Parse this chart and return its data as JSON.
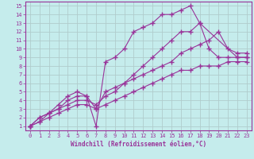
{
  "xlabel": "Windchill (Refroidissement éolien,°C)",
  "xlim": [
    -0.5,
    23.5
  ],
  "ylim": [
    0.5,
    15.5
  ],
  "xticks": [
    0,
    1,
    2,
    3,
    4,
    5,
    6,
    7,
    8,
    9,
    10,
    11,
    12,
    13,
    14,
    15,
    16,
    17,
    18,
    19,
    20,
    21,
    22,
    23
  ],
  "yticks": [
    1,
    2,
    3,
    4,
    5,
    6,
    7,
    8,
    9,
    10,
    11,
    12,
    13,
    14,
    15
  ],
  "bg_color": "#c5ecec",
  "line_color": "#993399",
  "grid_color": "#b0cccc",
  "lines": [
    {
      "x": [
        0,
        1,
        2,
        3,
        4,
        5,
        6,
        7,
        8,
        9,
        10,
        11,
        12,
        13,
        14,
        15,
        16,
        17,
        18,
        22,
        23
      ],
      "y": [
        1,
        2,
        2.5,
        3.5,
        4.5,
        5,
        4.5,
        1,
        8.5,
        9,
        10,
        12,
        12.5,
        13,
        14,
        14,
        14.5,
        15,
        13,
        9,
        9
      ]
    },
    {
      "x": [
        0,
        1,
        2,
        3,
        4,
        5,
        6,
        7,
        8,
        9,
        10,
        11,
        12,
        13,
        14,
        15,
        16,
        17,
        18,
        19,
        20,
        21,
        22,
        23
      ],
      "y": [
        1,
        2,
        2.5,
        3,
        4,
        4.5,
        4.5,
        3,
        5,
        5.5,
        6,
        7,
        8,
        9,
        10,
        11,
        12,
        12,
        13,
        10,
        9,
        9,
        9,
        9
      ]
    },
    {
      "x": [
        0,
        1,
        2,
        3,
        4,
        5,
        6,
        7,
        8,
        9,
        10,
        11,
        12,
        13,
        14,
        15,
        16,
        17,
        18,
        19,
        20,
        21,
        22,
        23
      ],
      "y": [
        1,
        1.5,
        2.5,
        3,
        3.5,
        4,
        4,
        3.5,
        4.5,
        5,
        6,
        6.5,
        7,
        7.5,
        8,
        8.5,
        9.5,
        10,
        10.5,
        11,
        12,
        10,
        9.5,
        9.5
      ]
    },
    {
      "x": [
        0,
        1,
        2,
        3,
        4,
        5,
        6,
        7,
        8,
        9,
        10,
        11,
        12,
        13,
        14,
        15,
        16,
        17,
        18,
        19,
        20,
        21,
        22,
        23
      ],
      "y": [
        1,
        1.5,
        2,
        2.5,
        3,
        3.5,
        3.5,
        3,
        3.5,
        4,
        4.5,
        5,
        5.5,
        6,
        6.5,
        7,
        7.5,
        7.5,
        8,
        8,
        8,
        8.5,
        8.5,
        8.5
      ]
    }
  ],
  "marker": "+",
  "markersize": 4,
  "markeredgewidth": 1.0,
  "linewidth": 0.8,
  "tick_fontsize": 5,
  "label_fontsize": 5.5
}
